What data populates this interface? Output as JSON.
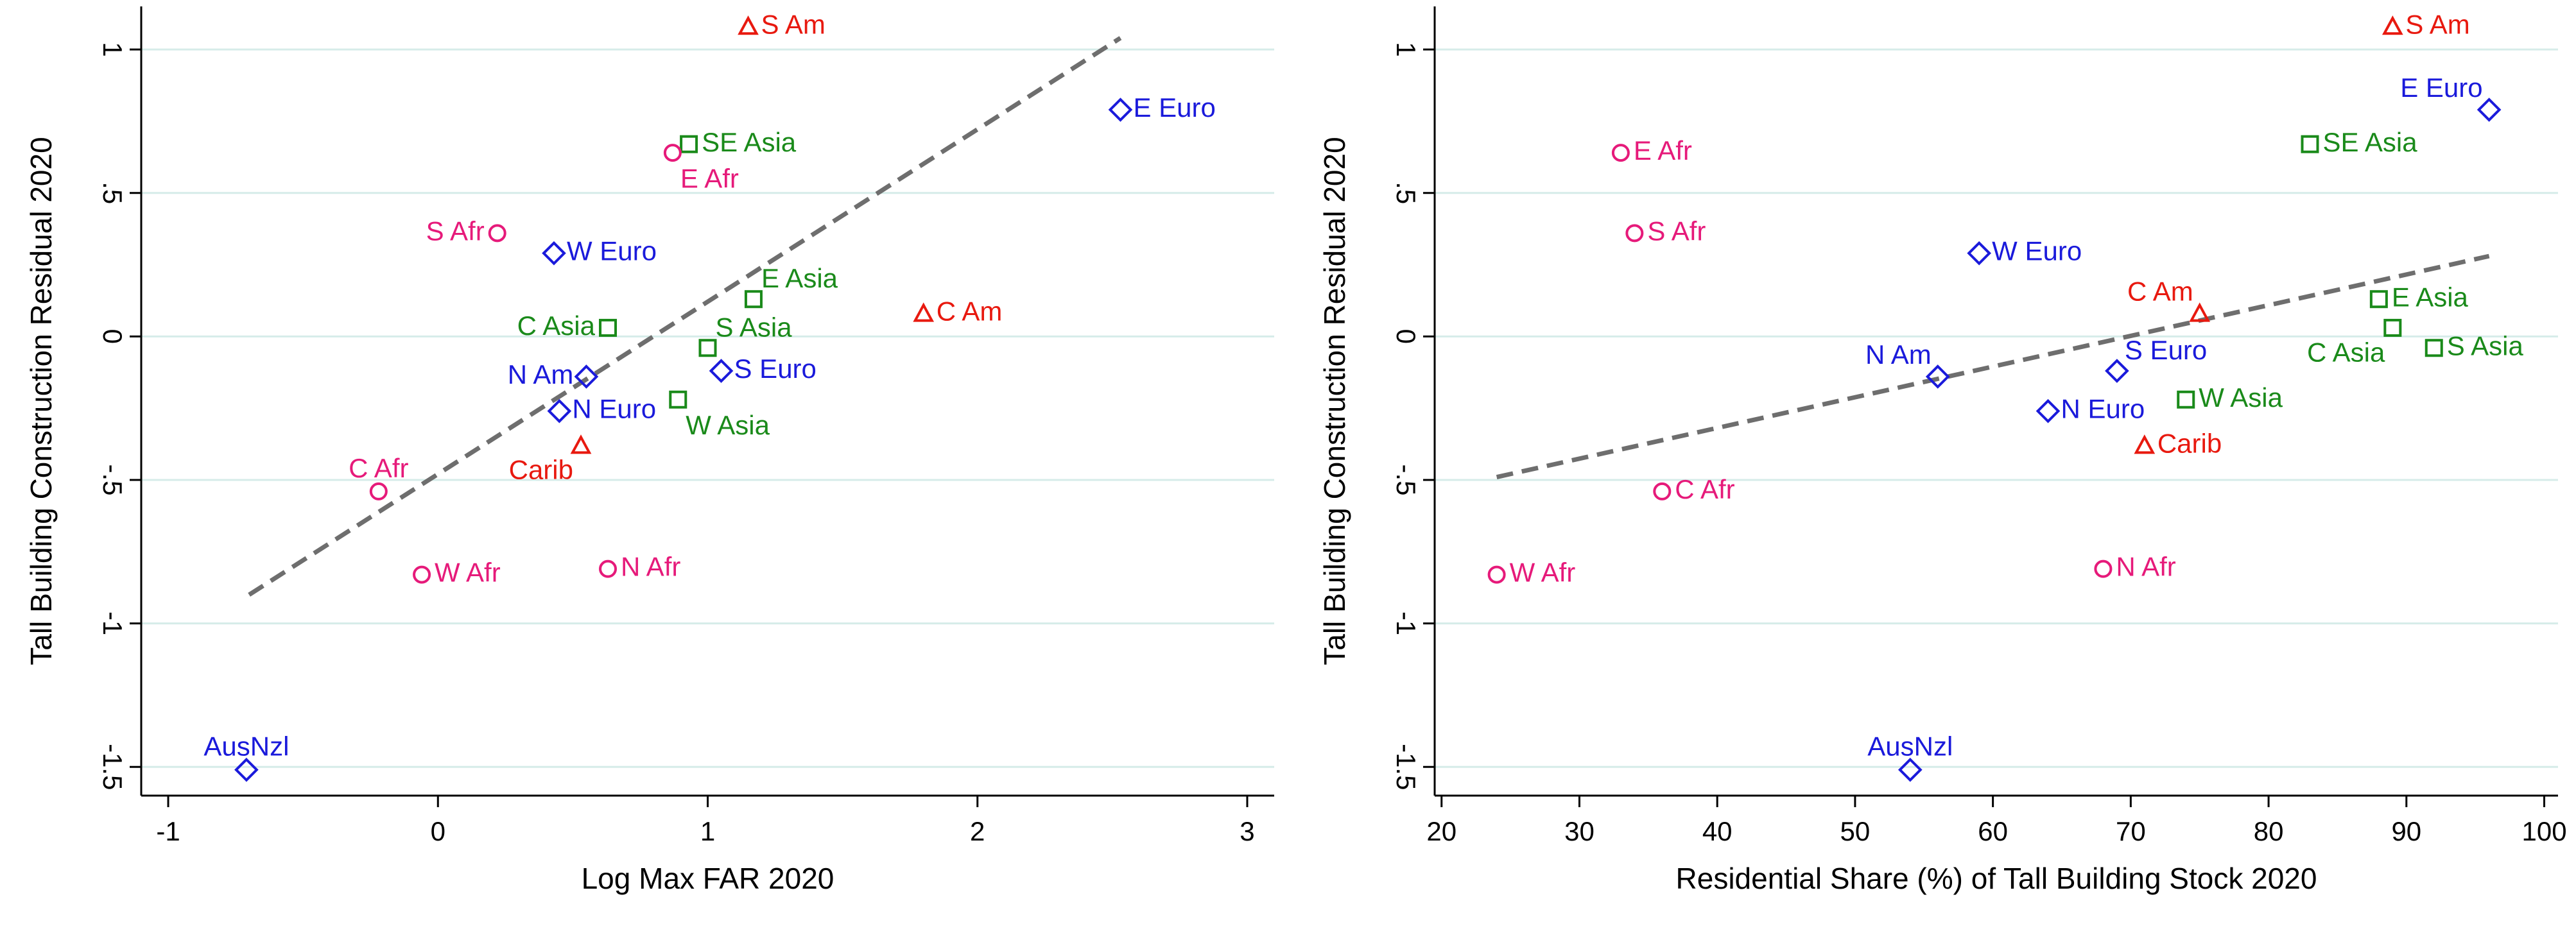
{
  "chart_data": [
    {
      "type": "scatter",
      "title": "",
      "xlabel": "Log Max FAR 2020",
      "ylabel": "Tall Building Construction Residual 2020",
      "xlim": [
        -1.1,
        3.1
      ],
      "ylim": [
        -1.6,
        1.15
      ],
      "xticks": [
        -1,
        0,
        1,
        2,
        3
      ],
      "xtick_labels": [
        "-1",
        "0",
        "1",
        "2",
        "3"
      ],
      "yticks": [
        1,
        0.5,
        0,
        -0.5,
        -1,
        -1.5
      ],
      "ytick_labels": [
        "1",
        ".5",
        "0",
        "-.5",
        "-1",
        "-1.5"
      ],
      "grid": "horizontal",
      "fit_line": {
        "x": [
          -0.7,
          2.53
        ],
        "y": [
          -0.9,
          1.04
        ]
      },
      "points": [
        {
          "label": "S Am",
          "x": 1.15,
          "y": 1.08,
          "group": "americas",
          "label_pos": "right"
        },
        {
          "label": "E Euro",
          "x": 2.53,
          "y": 0.79,
          "group": "europe_oceania",
          "label_pos": "right"
        },
        {
          "label": "SE Asia",
          "x": 0.93,
          "y": 0.67,
          "group": "asia",
          "label_pos": "right"
        },
        {
          "label": "E Afr",
          "x": 0.87,
          "y": 0.64,
          "group": "africa",
          "label_pos": "below-right"
        },
        {
          "label": "S Afr",
          "x": 0.22,
          "y": 0.36,
          "group": "africa",
          "label_pos": "left"
        },
        {
          "label": "W Euro",
          "x": 0.43,
          "y": 0.29,
          "group": "europe_oceania",
          "label_pos": "right"
        },
        {
          "label": "E Asia",
          "x": 1.17,
          "y": 0.13,
          "group": "asia",
          "label_pos": "above-right"
        },
        {
          "label": "C Am",
          "x": 1.8,
          "y": 0.08,
          "group": "americas",
          "label_pos": "right"
        },
        {
          "label": "C Asia",
          "x": 0.63,
          "y": 0.03,
          "group": "asia",
          "label_pos": "left"
        },
        {
          "label": "S Asia",
          "x": 1.0,
          "y": -0.04,
          "group": "asia",
          "label_pos": "above-right"
        },
        {
          "label": "S Euro",
          "x": 1.05,
          "y": -0.12,
          "group": "europe_oceania",
          "label_pos": "right"
        },
        {
          "label": "N Am",
          "x": 0.55,
          "y": -0.14,
          "group": "europe_oceania",
          "label_pos": "left"
        },
        {
          "label": "W Asia",
          "x": 0.89,
          "y": -0.22,
          "group": "asia",
          "label_pos": "below-right"
        },
        {
          "label": "N Euro",
          "x": 0.45,
          "y": -0.26,
          "group": "europe_oceania",
          "label_pos": "right"
        },
        {
          "label": "Carib",
          "x": 0.53,
          "y": -0.38,
          "group": "americas",
          "label_pos": "below-left"
        },
        {
          "label": "C Afr",
          "x": -0.22,
          "y": -0.54,
          "group": "africa",
          "label_pos": "above"
        },
        {
          "label": "W Afr",
          "x": -0.06,
          "y": -0.83,
          "group": "africa",
          "label_pos": "right"
        },
        {
          "label": "N Afr",
          "x": 0.63,
          "y": -0.81,
          "group": "africa",
          "label_pos": "right"
        },
        {
          "label": "AusNzl",
          "x": -0.71,
          "y": -1.51,
          "group": "europe_oceania",
          "label_pos": "above"
        }
      ]
    },
    {
      "type": "scatter",
      "title": "",
      "xlabel": "Residential Share (%) of Tall Building Stock 2020",
      "ylabel": "Tall Building Construction Residual 2020",
      "xlim": [
        19.5,
        101
      ],
      "ylim": [
        -1.6,
        1.15
      ],
      "xticks": [
        20,
        30,
        40,
        50,
        60,
        70,
        80,
        90,
        100
      ],
      "xtick_labels": [
        "20",
        "30",
        "40",
        "50",
        "60",
        "70",
        "80",
        "90",
        "100"
      ],
      "yticks": [
        1,
        0.5,
        0,
        -0.5,
        -1,
        -1.5
      ],
      "ytick_labels": [
        "1",
        ".5",
        "0",
        "-.5",
        "-1",
        "-1.5"
      ],
      "grid": "horizontal",
      "fit_line": {
        "x": [
          24,
          96
        ],
        "y": [
          -0.49,
          0.28
        ]
      },
      "points": [
        {
          "label": "S Am",
          "x": 89,
          "y": 1.08,
          "group": "americas",
          "label_pos": "right"
        },
        {
          "label": "E Euro",
          "x": 96,
          "y": 0.79,
          "group": "europe_oceania",
          "label_pos": "above-left"
        },
        {
          "label": "SE Asia",
          "x": 83,
          "y": 0.67,
          "group": "asia",
          "label_pos": "right"
        },
        {
          "label": "E Afr",
          "x": 33,
          "y": 0.64,
          "group": "africa",
          "label_pos": "right"
        },
        {
          "label": "S Afr",
          "x": 34,
          "y": 0.36,
          "group": "africa",
          "label_pos": "right"
        },
        {
          "label": "W Euro",
          "x": 59,
          "y": 0.29,
          "group": "europe_oceania",
          "label_pos": "right"
        },
        {
          "label": "C Am",
          "x": 75,
          "y": 0.08,
          "group": "americas",
          "label_pos": "above-left"
        },
        {
          "label": "E Asia",
          "x": 88,
          "y": 0.13,
          "group": "asia",
          "label_pos": "right"
        },
        {
          "label": "C Asia",
          "x": 89,
          "y": 0.03,
          "group": "asia",
          "label_pos": "below-left"
        },
        {
          "label": "S Asia",
          "x": 92,
          "y": -0.04,
          "group": "asia",
          "label_pos": "right"
        },
        {
          "label": "S Euro",
          "x": 69,
          "y": -0.12,
          "group": "europe_oceania",
          "label_pos": "above-right"
        },
        {
          "label": "N Am",
          "x": 56,
          "y": -0.14,
          "group": "europe_oceania",
          "label_pos": "above-left"
        },
        {
          "label": "W Asia",
          "x": 74,
          "y": -0.22,
          "group": "asia",
          "label_pos": "right"
        },
        {
          "label": "N Euro",
          "x": 64,
          "y": -0.26,
          "group": "europe_oceania",
          "label_pos": "right"
        },
        {
          "label": "Carib",
          "x": 71,
          "y": -0.38,
          "group": "americas",
          "label_pos": "right"
        },
        {
          "label": "C Afr",
          "x": 36,
          "y": -0.54,
          "group": "africa",
          "label_pos": "right"
        },
        {
          "label": "W Afr",
          "x": 24,
          "y": -0.83,
          "group": "africa",
          "label_pos": "right"
        },
        {
          "label": "N Afr",
          "x": 68,
          "y": -0.81,
          "group": "africa",
          "label_pos": "right"
        },
        {
          "label": "AusNzl",
          "x": 54,
          "y": -1.51,
          "group": "europe_oceania",
          "label_pos": "above"
        }
      ]
    }
  ],
  "marker_styles": {
    "americas": {
      "shape": "triangle",
      "color": "#e8190f"
    },
    "europe_oceania": {
      "shape": "diamond",
      "color": "#1a1adb"
    },
    "asia": {
      "shape": "square",
      "color": "#1a8a1a"
    },
    "africa": {
      "shape": "circle",
      "color": "#e61a7a"
    }
  },
  "colors": {
    "fit_line": "#6e6e6e",
    "grid": "#d6ece9",
    "axis": "#000000",
    "background": "#ffffff"
  }
}
